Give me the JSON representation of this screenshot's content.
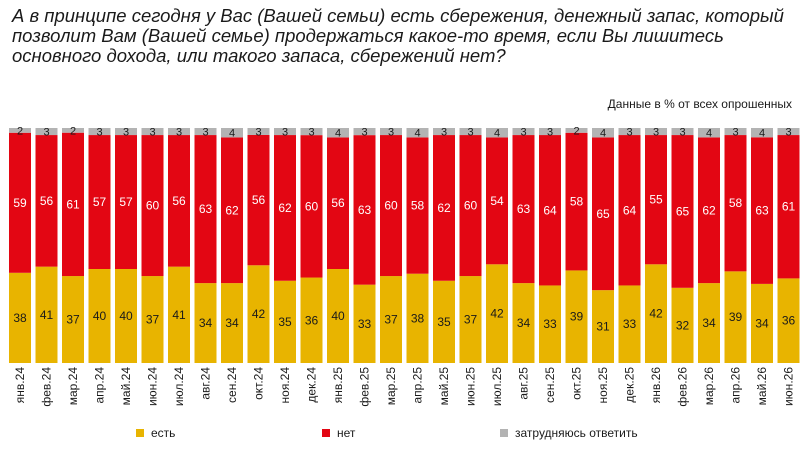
{
  "chart_data": {
    "type": "bar",
    "stacked": true,
    "percent": true,
    "title": "А в принципе сегодня у Вас (Вашей семьи) есть сбережения, денежный запас, который позволит Вам (Вашей семье) продержаться какое-то время, если Вы лишитесь основного дохода, или такого запаса, сбережений нет?",
    "subtitle": "Данные в % от всех опрошенных",
    "categories": [
      "янв.24",
      "фев.24",
      "мар.24",
      "апр.24",
      "май.24",
      "июн.24",
      "июл.24",
      "авг.24",
      "сен.24",
      "окт.24",
      "ноя.24",
      "дек.24",
      "янв.25",
      "фев.25",
      "мар.25",
      "апр.25",
      "май.25",
      "июн.25",
      "июл.25",
      "авг.25",
      "сен.25",
      "окт.25",
      "ноя.25",
      "дек.25",
      "янв.26",
      "фев.26",
      "мар.26",
      "апр.26",
      "май.26",
      "июн.26"
    ],
    "series": [
      {
        "name": "есть",
        "color": "#e8b400",
        "values": [
          38,
          41,
          37,
          40,
          40,
          37,
          41,
          34,
          34,
          42,
          35,
          36,
          40,
          33,
          37,
          38,
          35,
          37,
          42,
          34,
          33,
          39,
          31,
          33,
          42,
          32,
          34,
          39,
          34,
          36
        ]
      },
      {
        "name": "нет",
        "color": "#e30613",
        "values": [
          59,
          56,
          61,
          57,
          57,
          60,
          56,
          63,
          62,
          56,
          62,
          60,
          56,
          63,
          60,
          58,
          62,
          60,
          54,
          63,
          64,
          58,
          65,
          64,
          55,
          65,
          62,
          58,
          63,
          61
        ]
      },
      {
        "name": "затрудняюсь ответить",
        "color": "#b3b3b3",
        "values": [
          2,
          3,
          2,
          3,
          3,
          3,
          3,
          3,
          4,
          3,
          3,
          3,
          4,
          3,
          3,
          4,
          3,
          3,
          4,
          3,
          3,
          2,
          4,
          3,
          3,
          3,
          4,
          3,
          4,
          3
        ]
      }
    ],
    "ylim": [
      0,
      100
    ],
    "grid": false,
    "legend_position": "bottom"
  }
}
